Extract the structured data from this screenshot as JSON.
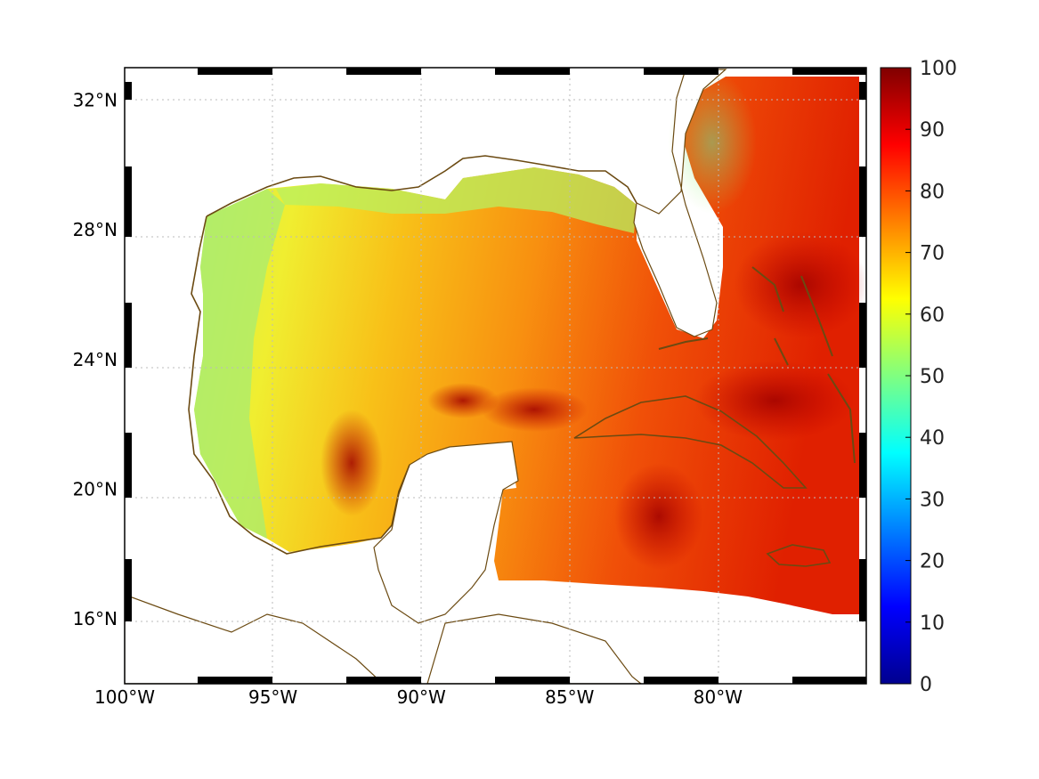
{
  "map": {
    "lon_range": [
      -100,
      -75
    ],
    "lat_range": [
      14,
      33
    ],
    "lon_ticks": [
      {
        "lon": -100,
        "label": "100°W"
      },
      {
        "lon": -95,
        "label": "95°W"
      },
      {
        "lon": -90,
        "label": "90°W"
      },
      {
        "lon": -85,
        "label": "85°W"
      },
      {
        "lon": -80,
        "label": "80°W"
      }
    ],
    "lat_ticks": [
      {
        "lat": 16,
        "label": "16°N"
      },
      {
        "lat": 20,
        "label": "20°N"
      },
      {
        "lat": 24,
        "label": "24°N"
      },
      {
        "lat": 28,
        "label": "28°N"
      },
      {
        "lat": 32,
        "label": "32°N"
      }
    ],
    "coastline_color": "#6b4a12",
    "grid": "dotted"
  },
  "colorbar": {
    "min": 0,
    "max": 100,
    "colormap": "jet",
    "ticks": [
      "0",
      "10",
      "20",
      "30",
      "40",
      "50",
      "60",
      "70",
      "80",
      "90",
      "100"
    ]
  }
}
